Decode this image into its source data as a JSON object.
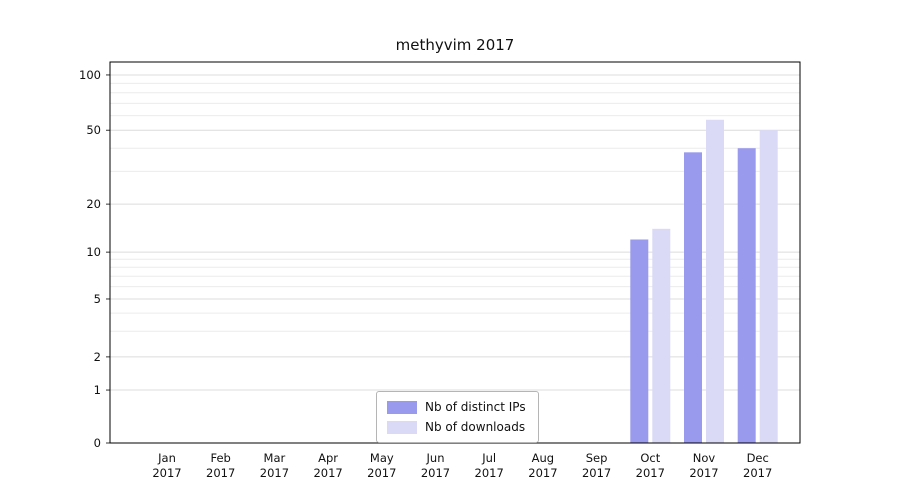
{
  "chart_data": {
    "type": "bar",
    "title": "methyvim 2017",
    "months": [
      "Jan",
      "Feb",
      "Mar",
      "Apr",
      "May",
      "Jun",
      "Jul",
      "Aug",
      "Sep",
      "Oct",
      "Nov",
      "Dec"
    ],
    "year": "2017",
    "series": [
      {
        "name": "Nb of distinct IPs",
        "color": "#9999ed",
        "values": [
          0,
          0,
          0,
          0,
          0,
          0,
          0,
          0,
          0,
          12,
          38,
          40
        ]
      },
      {
        "name": "Nb of downloads",
        "color": "#dadaf7",
        "values": [
          0,
          0,
          0,
          0,
          0,
          0,
          0,
          0,
          0,
          14,
          57,
          50
        ]
      }
    ],
    "y_axis": {
      "scale": "symlog",
      "major_ticks": [
        0,
        1,
        2,
        5,
        10,
        20,
        50,
        100
      ],
      "minor_ticks": [
        3,
        4,
        6,
        7,
        8,
        9,
        30,
        40,
        60,
        70,
        80,
        90
      ],
      "ylim": [
        0,
        110
      ]
    },
    "xlabel": "",
    "ylabel": "",
    "grid": "horizontal",
    "legend_position": "lower-center-inside"
  }
}
